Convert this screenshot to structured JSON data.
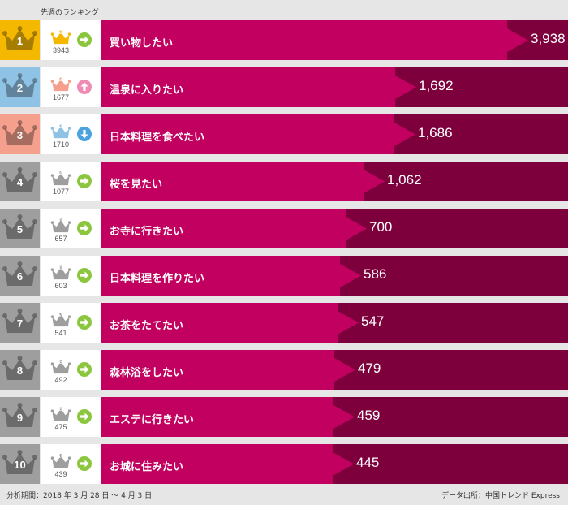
{
  "header": {
    "previous_week_label": "先週のランキング"
  },
  "colors": {
    "rank_gold": "#f5b800",
    "rank_blue": "#8fc3e6",
    "rank_salmon": "#f4a08c",
    "rank_gray": "#9e9e9e",
    "bar_fill": "#c1005f",
    "bar_track": "#7d003d",
    "trend_same": "#8cc63f",
    "trend_up": "#f08cb4",
    "trend_down": "#4aa3df"
  },
  "chart_data": {
    "type": "bar",
    "title": "",
    "xlabel": "",
    "ylabel": "",
    "categories": [
      "買い物したい",
      "温泉に入りたい",
      "日本料理を食べたい",
      "桜を見たい",
      "お寺に行きたい",
      "日本料理を作りたい",
      "お茶をたてたい",
      "森林浴をしたい",
      "エステに行きたい",
      "お城に住みたい"
    ],
    "values": [
      3938,
      1692,
      1686,
      1062,
      700,
      586,
      547,
      479,
      459,
      445
    ],
    "value_labels": [
      "3,938",
      "1,692",
      "1,686",
      "1,062",
      "700",
      "586",
      "547",
      "479",
      "459",
      "445"
    ],
    "ranks": [
      "1",
      "2",
      "3",
      "4",
      "5",
      "6",
      "7",
      "8",
      "9",
      "10"
    ],
    "rank_colors": [
      "gold",
      "blue",
      "salmon",
      "gray",
      "gray",
      "gray",
      "gray",
      "gray",
      "gray",
      "gray"
    ],
    "previous_ranks": [
      "1",
      "3",
      "2",
      "4",
      "5",
      "6",
      "7",
      "8",
      "9",
      "10"
    ],
    "previous_counts": [
      "3943",
      "1677",
      "1710",
      "1077",
      "657",
      "603",
      "541",
      "492",
      "475",
      "439"
    ],
    "trends": [
      "same",
      "up",
      "down",
      "same",
      "same",
      "same",
      "same",
      "same",
      "same",
      "same"
    ],
    "xlim": [
      0,
      3938
    ]
  },
  "footer": {
    "period": "分析期間：2018 年 3 月 28 日 ～ 4 月 3 日",
    "source": "データ出所：中国トレンド Express"
  }
}
